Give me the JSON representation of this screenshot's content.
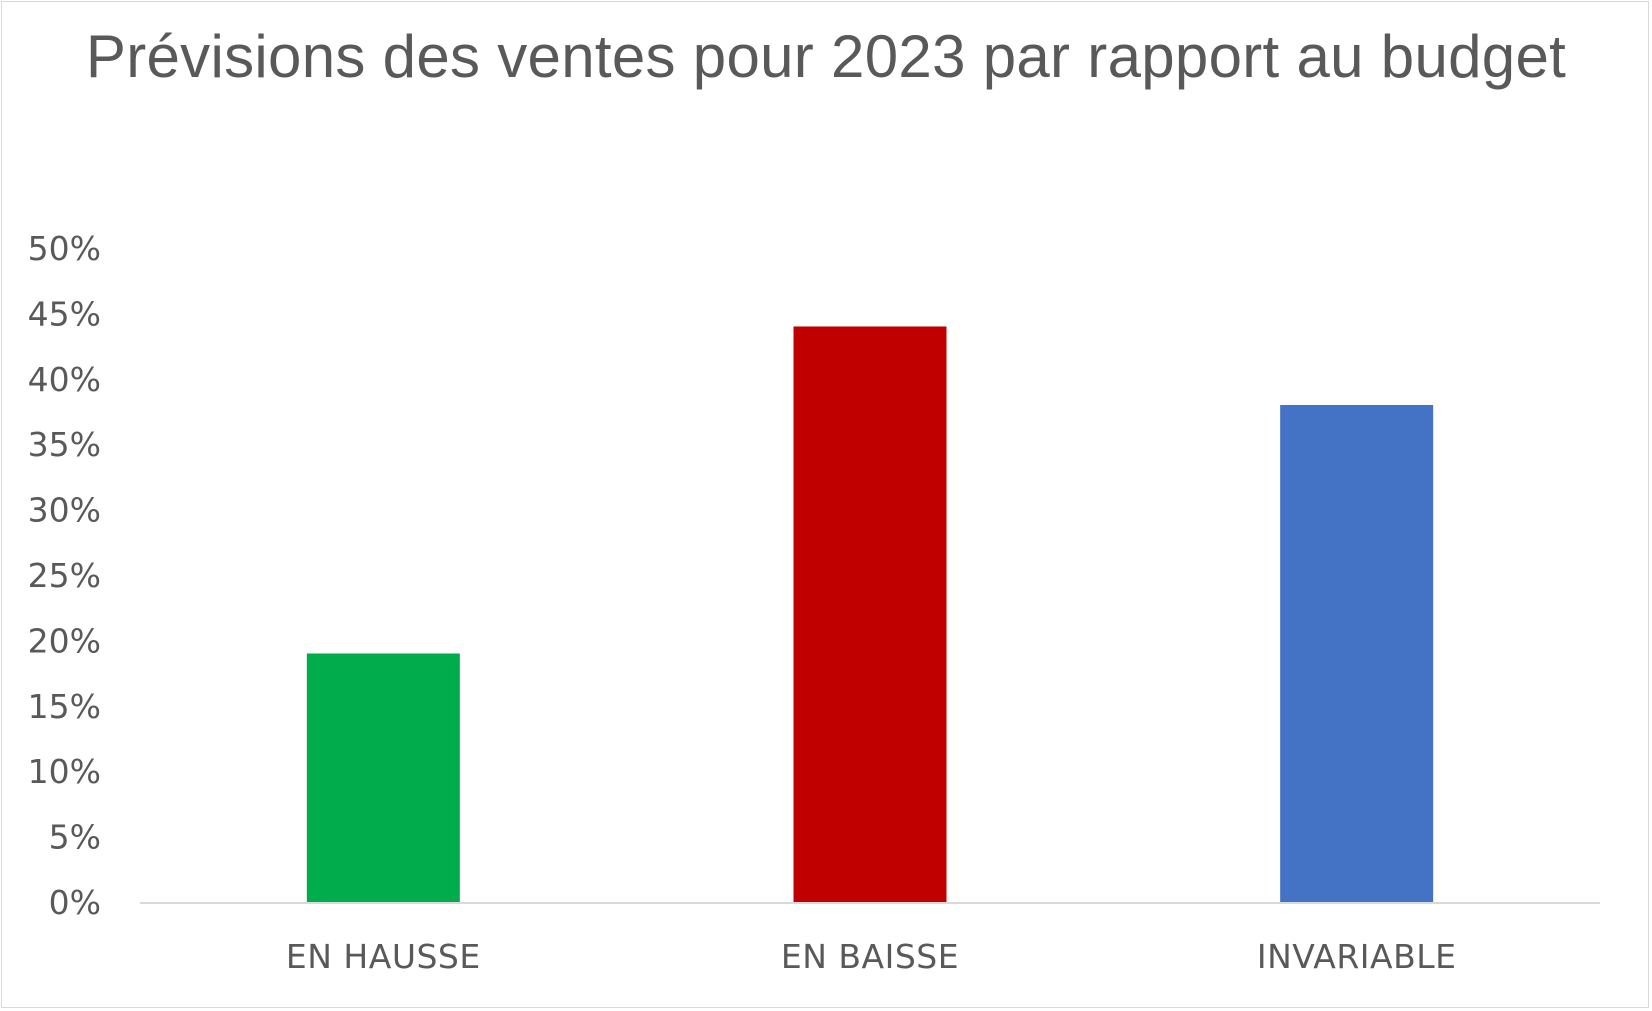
{
  "chart_data": {
    "type": "bar",
    "title": "Prévisions des ventes pour 2023 par rapport au budget",
    "categories": [
      "EN HAUSSE",
      "EN BAISSE",
      "INVARIABLE"
    ],
    "values": [
      0.19,
      0.44,
      0.38
    ],
    "colors": [
      "#00ac4c",
      "#c00000",
      "#4472c4"
    ],
    "ylim": [
      0,
      0.5
    ],
    "yticks": [
      {
        "value": 0,
        "label": "0%"
      },
      {
        "value": 0.05,
        "label": "5%"
      },
      {
        "value": 0.1,
        "label": "10%"
      },
      {
        "value": 0.15,
        "label": "15%"
      },
      {
        "value": 0.2,
        "label": "20%"
      },
      {
        "value": 0.25,
        "label": "25%"
      },
      {
        "value": 0.3,
        "label": "30%"
      },
      {
        "value": 0.35,
        "label": "35%"
      },
      {
        "value": 0.4,
        "label": "40%"
      },
      {
        "value": 0.45,
        "label": "45%"
      },
      {
        "value": 0.5,
        "label": "50%"
      }
    ],
    "xlabel": "",
    "ylabel": "",
    "grid": false,
    "legend": "none"
  }
}
